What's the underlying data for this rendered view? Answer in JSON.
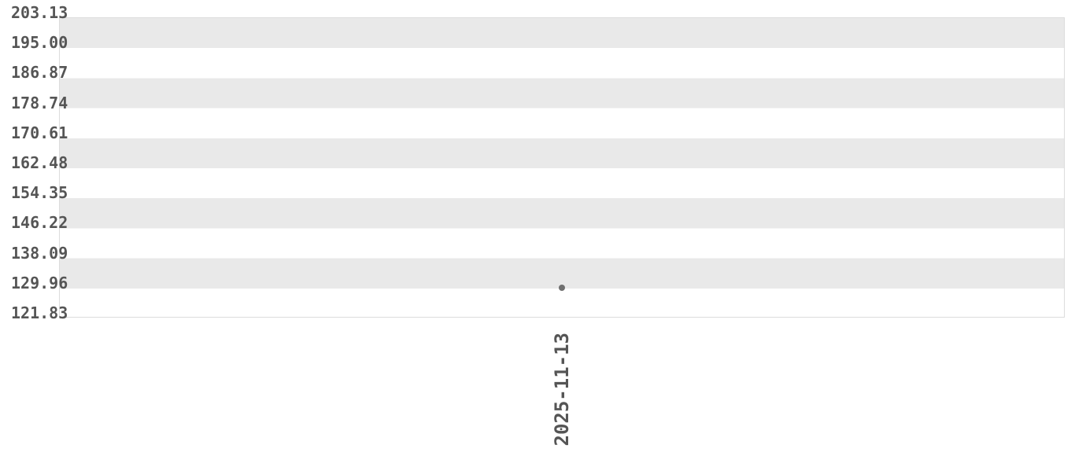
{
  "chart_data": {
    "type": "scatter",
    "x": [
      "2025-11-13"
    ],
    "values": [
      129.9
    ],
    "y_ticks": [
      "203.13",
      "195.00",
      "186.87",
      "178.74",
      "170.61",
      "162.48",
      "154.35",
      "146.22",
      "138.09",
      "129.96",
      "121.83"
    ],
    "ylim": [
      121.83,
      203.13
    ],
    "x_tick_rotation_degrees": 90,
    "grid": "alternating-horizontal-bands",
    "legend_position": "none"
  },
  "colors": {
    "background": "#ffffff",
    "band": "#e9e9e9",
    "band_alt": "#ffffff",
    "plot_border": "#dcdcdc",
    "tick_text": "#555555",
    "point": "#6f6f6f"
  }
}
